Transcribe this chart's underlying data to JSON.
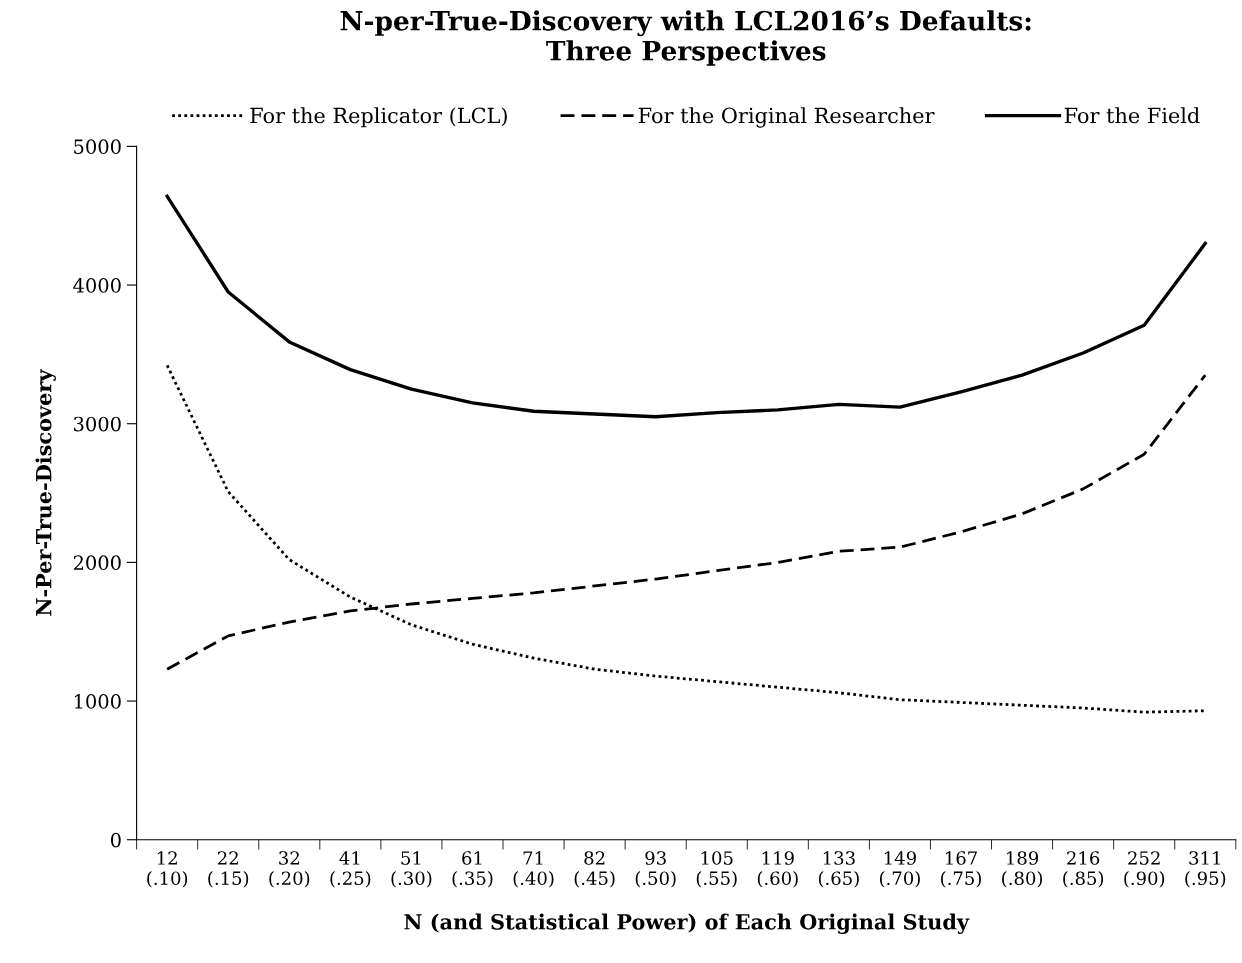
{
  "chart_data": {
    "type": "line",
    "title": "N-per-True-Discovery with LCL2016’s Defaults:\nThree Perspectives",
    "xlabel": "N (and Statistical Power) of Each Original Study",
    "ylabel": "N-Per-True-Discovery",
    "categories": [
      "12\n(.10)",
      "22\n(.15)",
      "32\n(.20)",
      "41\n(.25)",
      "51\n(.30)",
      "61\n(.35)",
      "71\n(.40)",
      "82\n(.45)",
      "93\n(.50)",
      "105\n(.55)",
      "119\n(.60)",
      "133\n(.65)",
      "149\n(.70)",
      "167\n(.75)",
      "189\n(.80)",
      "216\n(.85)",
      "252\n(.90)",
      "311\n(.95)"
    ],
    "series": [
      {
        "name": "For the Replicator (LCL)",
        "color": "#000000",
        "line_style": "dotted",
        "values": [
          3420,
          2510,
          2020,
          1750,
          1550,
          1410,
          1310,
          1230,
          1180,
          1140,
          1100,
          1060,
          1010,
          990,
          970,
          950,
          920,
          930
        ]
      },
      {
        "name": "For the Original Researcher",
        "color": "#000000",
        "line_style": "dashed",
        "values": [
          1230,
          1470,
          1570,
          1650,
          1700,
          1740,
          1780,
          1830,
          1880,
          1940,
          2000,
          2080,
          2110,
          2220,
          2350,
          2530,
          2780,
          3350
        ]
      },
      {
        "name": "For the Field",
        "color": "#000000",
        "line_style": "solid",
        "values": [
          4640,
          3950,
          3590,
          3390,
          3250,
          3150,
          3090,
          3070,
          3050,
          3080,
          3100,
          3140,
          3120,
          3230,
          3350,
          3510,
          3710,
          4300
        ]
      }
    ],
    "ylim": [
      0,
      5000
    ],
    "yticks": [
      0,
      1000,
      2000,
      3000,
      4000,
      5000
    ],
    "grid": false,
    "legend": "top",
    "marker": "none"
  }
}
